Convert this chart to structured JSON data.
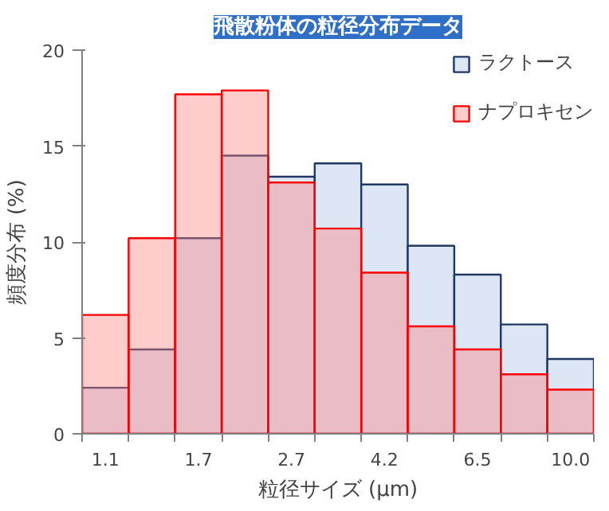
{
  "chart_data": {
    "type": "bar",
    "title": "飛散粉体の粒径分布データ",
    "xlabel": "粒径サイズ (μm)",
    "ylabel": "頻度分布 (%)",
    "categories": [
      "1.1",
      null,
      "1.7",
      null,
      "2.7",
      null,
      "4.2",
      null,
      "6.5",
      null,
      "10.0"
    ],
    "series": [
      {
        "name": "ラクトース",
        "color": "#dce6f5",
        "values": [
          2.4,
          4.4,
          10.2,
          14.5,
          13.4,
          14.1,
          13.0,
          9.8,
          8.3,
          5.7,
          3.9
        ]
      },
      {
        "name": "ナプロキセン",
        "color": "#ff8080",
        "values": [
          6.2,
          10.2,
          17.7,
          17.9,
          13.1,
          10.7,
          8.4,
          5.6,
          4.4,
          3.1,
          2.3
        ]
      }
    ],
    "ylim": [
      0,
      20
    ],
    "yticks": [
      0,
      5,
      10,
      15,
      20
    ],
    "grid": false,
    "legend": "top right"
  }
}
